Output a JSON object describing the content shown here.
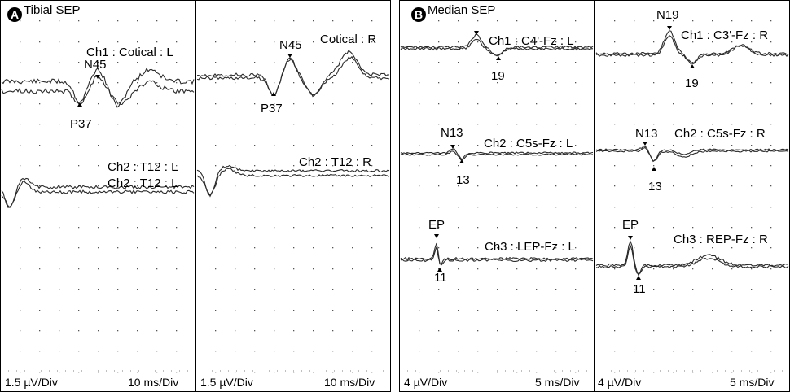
{
  "chart_data": [
    {
      "type": "line",
      "panel": "A",
      "title": "Tibial SEP",
      "scale_left": "1.5 µV/Div",
      "scale_left_time": "10 ms/Div",
      "scale_right": "1.5 µV/Div",
      "scale_right_time": "10 ms/Div",
      "channels": {
        "ch1_left": "Ch1 : Cotical : L",
        "ch1_right": "Cotical : R",
        "ch2_left": "Ch2 : T12 : L",
        "ch2_left_dup": "Ch2 : T12 : L",
        "ch2_right": "Ch2 : T12 : R"
      },
      "peaks": {
        "n45_left": "N45",
        "p37_left": "P37",
        "n45_right": "N45",
        "p37_right": "P37"
      }
    },
    {
      "type": "line",
      "panel": "B",
      "title": "Median SEP",
      "scale_left": "4 µV/Div",
      "scale_left_time": "5 ms/Div",
      "scale_right": "4 µV/Div",
      "scale_right_time": "5 ms/Div",
      "channels": {
        "ch1_left": "Ch1 : C4'-Fz : L",
        "ch1_right": "Ch1 : C3'-Fz : R",
        "ch2_left": "Ch2 : C5s-Fz : L",
        "ch2_right": "Ch2 : C5s-Fz : R",
        "ch3_left": "Ch3 : LEP-Fz : L",
        "ch3_right": "Ch3 : REP-Fz : R"
      },
      "peaks": {
        "n19_right": "N19",
        "p19_left": "19",
        "p19_right": "19",
        "n13_left": "N13",
        "n13_right": "N13",
        "p13_left": "13",
        "p13_right": "13",
        "ep_left": "EP",
        "ep_right": "EP",
        "p11_left": "11",
        "p11_right": "11"
      }
    }
  ],
  "colors": {
    "trace": "#2a2a2a",
    "grid_dot": "#555555",
    "border": "#000000"
  }
}
